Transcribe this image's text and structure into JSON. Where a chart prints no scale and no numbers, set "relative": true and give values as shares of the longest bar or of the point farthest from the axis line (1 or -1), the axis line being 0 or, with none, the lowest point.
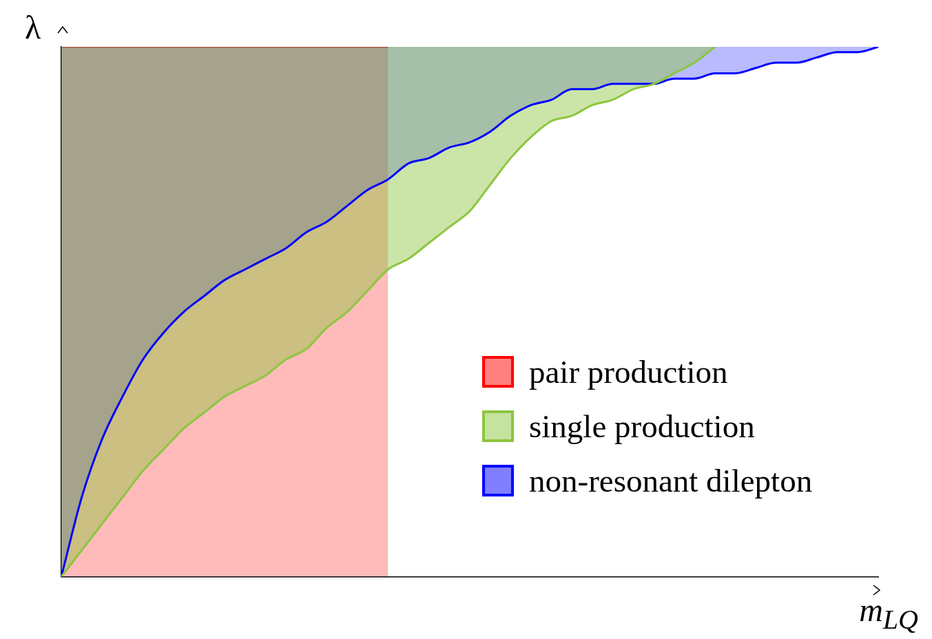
{
  "chart_data": {
    "type": "area",
    "relative": true,
    "xlabel": "m$_{LQ}$",
    "ylabel": "λ",
    "legend": "bottom right",
    "grid": false,
    "categories": [
      null,
      null,
      null,
      null,
      null,
      null,
      null,
      null,
      null,
      null,
      null,
      null,
      null,
      null,
      null,
      null,
      null,
      null,
      null,
      null,
      null,
      null,
      null,
      null,
      null,
      null,
      null,
      null,
      null,
      null,
      null,
      null,
      null,
      null,
      null,
      null,
      null,
      null,
      null,
      null,
      null
    ],
    "series": [
      {
        "name": "pair production",
        "color": "#ff0000",
        "values": [
          1,
          1,
          1,
          1,
          1,
          1,
          1,
          1,
          1,
          1,
          1,
          1,
          1,
          1,
          1,
          1,
          1,
          null,
          null,
          null,
          null,
          null,
          null,
          null,
          null,
          null,
          null,
          null,
          null,
          null,
          null,
          null,
          null,
          null,
          null,
          null,
          null,
          null,
          null,
          null,
          null
        ]
      },
      {
        "name": "single production",
        "type": "line",
        "color": "#8cc63f",
        "lower": [
          0,
          0.05,
          0.1,
          0.15,
          0.2,
          0.24,
          0.28,
          0.31,
          0.34,
          0.36,
          0.38,
          0.41,
          0.43,
          0.47,
          0.5,
          0.54,
          0.58,
          0.6,
          0.63,
          0.66,
          0.69,
          0.74,
          0.79,
          0.83,
          0.86,
          0.87,
          0.89,
          0.9,
          0.92,
          0.93,
          0.95,
          0.97,
          1,
          null,
          null,
          null,
          null,
          null,
          null,
          null,
          null
        ],
        "values": [
          0,
          0.05,
          0.1,
          0.15,
          0.2,
          0.24,
          0.28,
          0.31,
          0.34,
          0.36,
          0.38,
          0.41,
          0.43,
          0.47,
          0.5,
          0.54,
          0.58,
          0.6,
          0.63,
          0.66,
          0.69,
          0.74,
          0.79,
          0.83,
          0.86,
          0.87,
          0.89,
          0.9,
          0.92,
          0.93,
          0.95,
          0.97,
          1,
          null,
          null,
          null,
          null,
          null,
          null,
          null,
          null
        ],
        "upper": [
          1,
          1,
          1,
          1,
          1,
          1,
          1,
          1,
          1,
          1,
          1,
          1,
          1,
          1,
          1,
          1,
          1,
          1,
          1,
          1,
          1,
          1,
          1,
          1,
          1,
          1,
          1,
          1,
          1,
          1,
          1,
          1,
          1,
          null,
          null,
          null,
          null,
          null,
          null,
          null,
          null
        ]
      },
      {
        "name": "non-resonant dilepton",
        "type": "line",
        "color": "#0000ff",
        "lower": [
          0,
          0.15,
          0.26,
          0.34,
          0.41,
          0.46,
          0.5,
          0.53,
          0.56,
          0.58,
          0.6,
          0.62,
          0.65,
          0.67,
          0.7,
          0.73,
          0.75,
          0.78,
          0.79,
          0.81,
          0.82,
          0.84,
          0.87,
          0.89,
          0.9,
          0.92,
          0.92,
          0.93,
          0.93,
          0.93,
          0.94,
          0.94,
          0.95,
          0.95,
          0.96,
          0.97,
          0.97,
          0.98,
          0.99,
          0.99,
          1
        ],
        "values": [
          0,
          0.15,
          0.26,
          0.34,
          0.41,
          0.46,
          0.5,
          0.53,
          0.56,
          0.58,
          0.6,
          0.62,
          0.65,
          0.67,
          0.7,
          0.73,
          0.75,
          0.78,
          0.79,
          0.81,
          0.82,
          0.84,
          0.87,
          0.89,
          0.9,
          0.92,
          0.92,
          0.93,
          0.93,
          0.93,
          0.94,
          0.94,
          0.95,
          0.95,
          0.96,
          0.97,
          0.97,
          0.98,
          0.99,
          0.99,
          1
        ],
        "upper": [
          1,
          1,
          1,
          1,
          1,
          1,
          1,
          1,
          1,
          1,
          1,
          1,
          1,
          1,
          1,
          1,
          1,
          1,
          1,
          1,
          1,
          1,
          1,
          1,
          1,
          1,
          1,
          1,
          1,
          1,
          1,
          1,
          1,
          1,
          1,
          1,
          1,
          1,
          1,
          1,
          1
        ]
      }
    ]
  }
}
